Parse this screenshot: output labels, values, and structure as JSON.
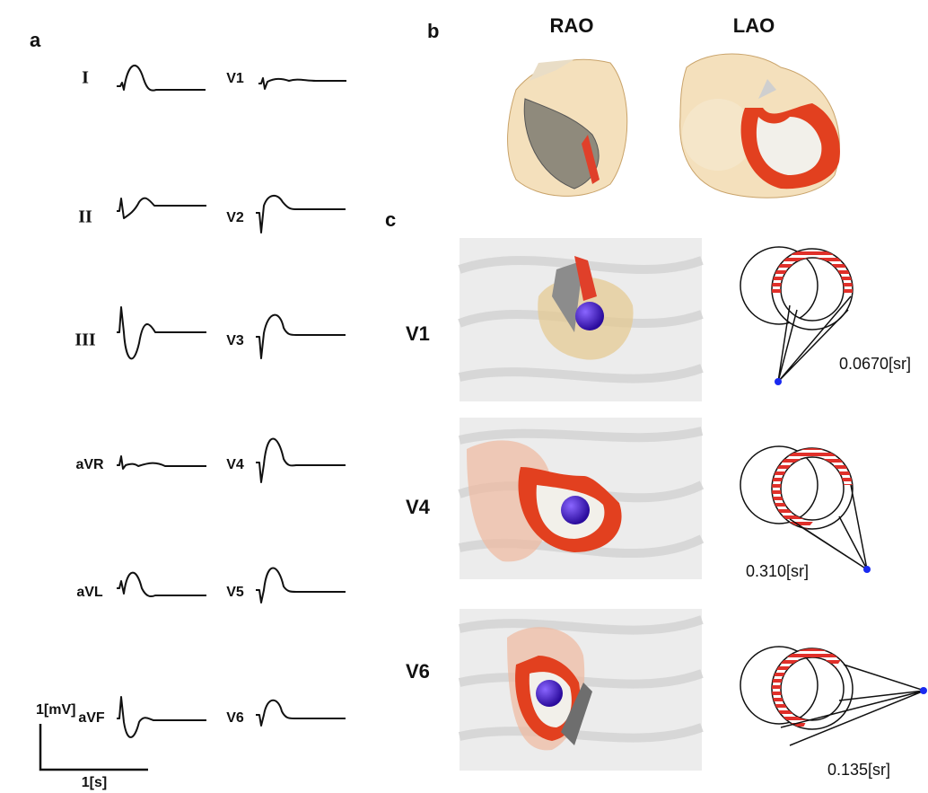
{
  "panel_a": {
    "label": "a",
    "limb_leads": [
      "I",
      "II",
      "III",
      "aVR",
      "aVL",
      "aVF"
    ],
    "precordial_leads": [
      "V1",
      "V2",
      "V3",
      "V4",
      "V5",
      "V6"
    ],
    "scale_voltage": "1[mV]",
    "scale_time": "1[s]"
  },
  "panel_b": {
    "label": "b",
    "views": [
      "RAO",
      "LAO"
    ]
  },
  "panel_c": {
    "label": "c",
    "rows": [
      {
        "lead": "V1",
        "solid_angle": "0.0670[sr]"
      },
      {
        "lead": "V4",
        "solid_angle": "0.310[sr]"
      },
      {
        "lead": "V6",
        "solid_angle": "0.135[sr]"
      }
    ]
  }
}
